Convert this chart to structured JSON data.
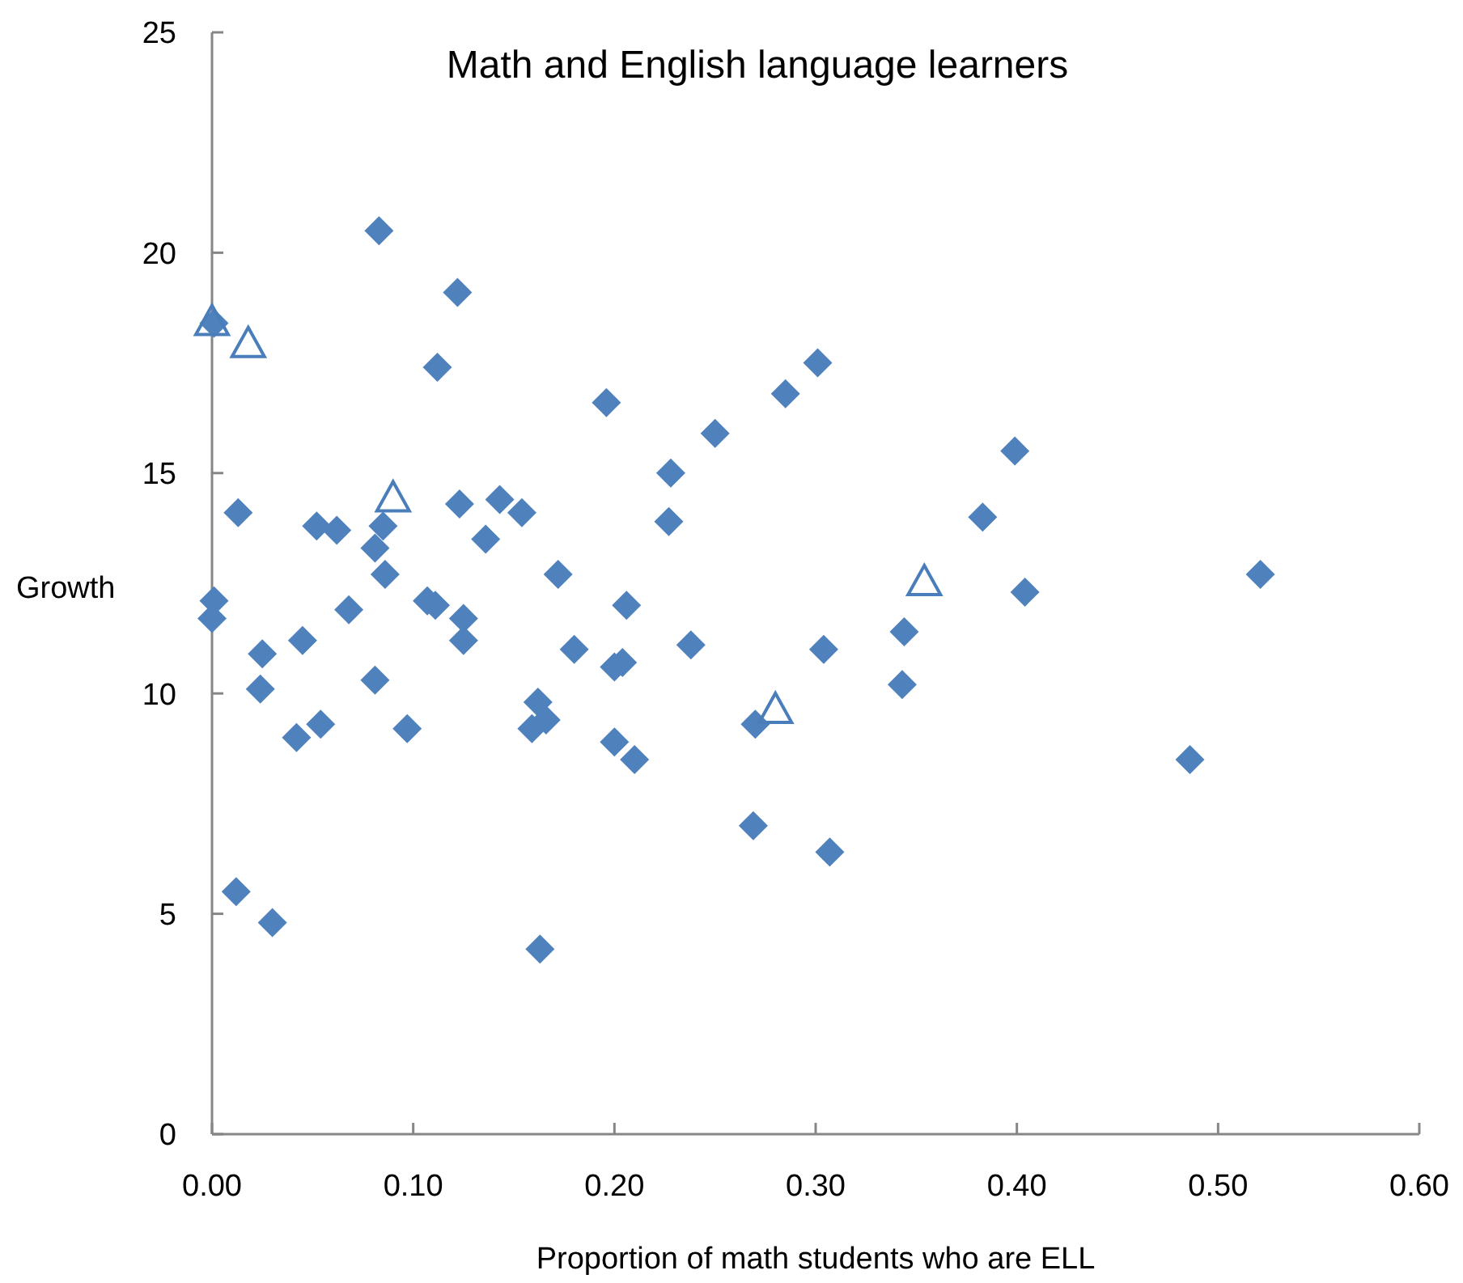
{
  "chart_data": {
    "type": "scatter",
    "title": "Math and English language learners",
    "xlabel": "Proportion of math students who are ELL",
    "ylabel": "Growth",
    "xlim": [
      0,
      0.6
    ],
    "ylim": [
      0,
      25
    ],
    "xticks": [
      {
        "value": 0,
        "label": "0.00"
      },
      {
        "value": 0.1,
        "label": "0.10"
      },
      {
        "value": 0.2,
        "label": "0.20"
      },
      {
        "value": 0.3,
        "label": "0.30"
      },
      {
        "value": 0.4,
        "label": "0.40"
      },
      {
        "value": 0.5,
        "label": "0.50"
      },
      {
        "value": 0.6,
        "label": "0.60"
      }
    ],
    "yticks": [
      0,
      5,
      10,
      15,
      20,
      25
    ],
    "series": [
      {
        "color": "#4f81bd",
        "marker": "diamond",
        "x": [
          0.083,
          0.122,
          0.112,
          0.196,
          0.301,
          0.285,
          0.25,
          0.228,
          0.399,
          0.383,
          0.013,
          0.052,
          0.062,
          0.085,
          0.081,
          0.086,
          0.123,
          0.143,
          0.154,
          0.136,
          0.172,
          0.227,
          0.001,
          0,
          0.068,
          0.107,
          0.111,
          0.125,
          0.125,
          0.045,
          0.025,
          0.024,
          0.081,
          0.18,
          0.206,
          0.204,
          0.2,
          0.238,
          0.304,
          0.344,
          0.343,
          0.404,
          0.521,
          0.042,
          0.054,
          0.097,
          0.162,
          0.159,
          0.166,
          0.2,
          0.21,
          0.27,
          0.269,
          0.307,
          0.486,
          0.012,
          0.03,
          0.163,
          0.001
        ],
        "values": [
          20.5,
          19.1,
          17.4,
          16.6,
          17.5,
          16.8,
          15.9,
          15.0,
          15.5,
          14.0,
          14.1,
          13.8,
          13.7,
          13.8,
          13.3,
          12.7,
          14.3,
          14.4,
          14.1,
          13.5,
          12.7,
          13.9,
          12.1,
          11.7,
          11.9,
          12.1,
          12.0,
          11.7,
          11.2,
          11.2,
          10.9,
          10.1,
          10.3,
          11.0,
          12.0,
          10.7,
          10.6,
          11.1,
          11.0,
          11.4,
          10.2,
          12.3,
          12.7,
          9.0,
          9.3,
          9.2,
          9.8,
          9.2,
          9.4,
          8.9,
          8.5,
          9.3,
          7.0,
          6.4,
          8.5,
          5.5,
          4.8,
          4.2,
          18.4
        ]
      },
      {
        "color": "#4a7ebb",
        "marker": "triangle",
        "x": [
          0,
          0.018,
          0.09,
          0.28,
          0.354
        ],
        "values": [
          18.4,
          17.9,
          14.4,
          9.6,
          12.5
        ]
      }
    ]
  }
}
